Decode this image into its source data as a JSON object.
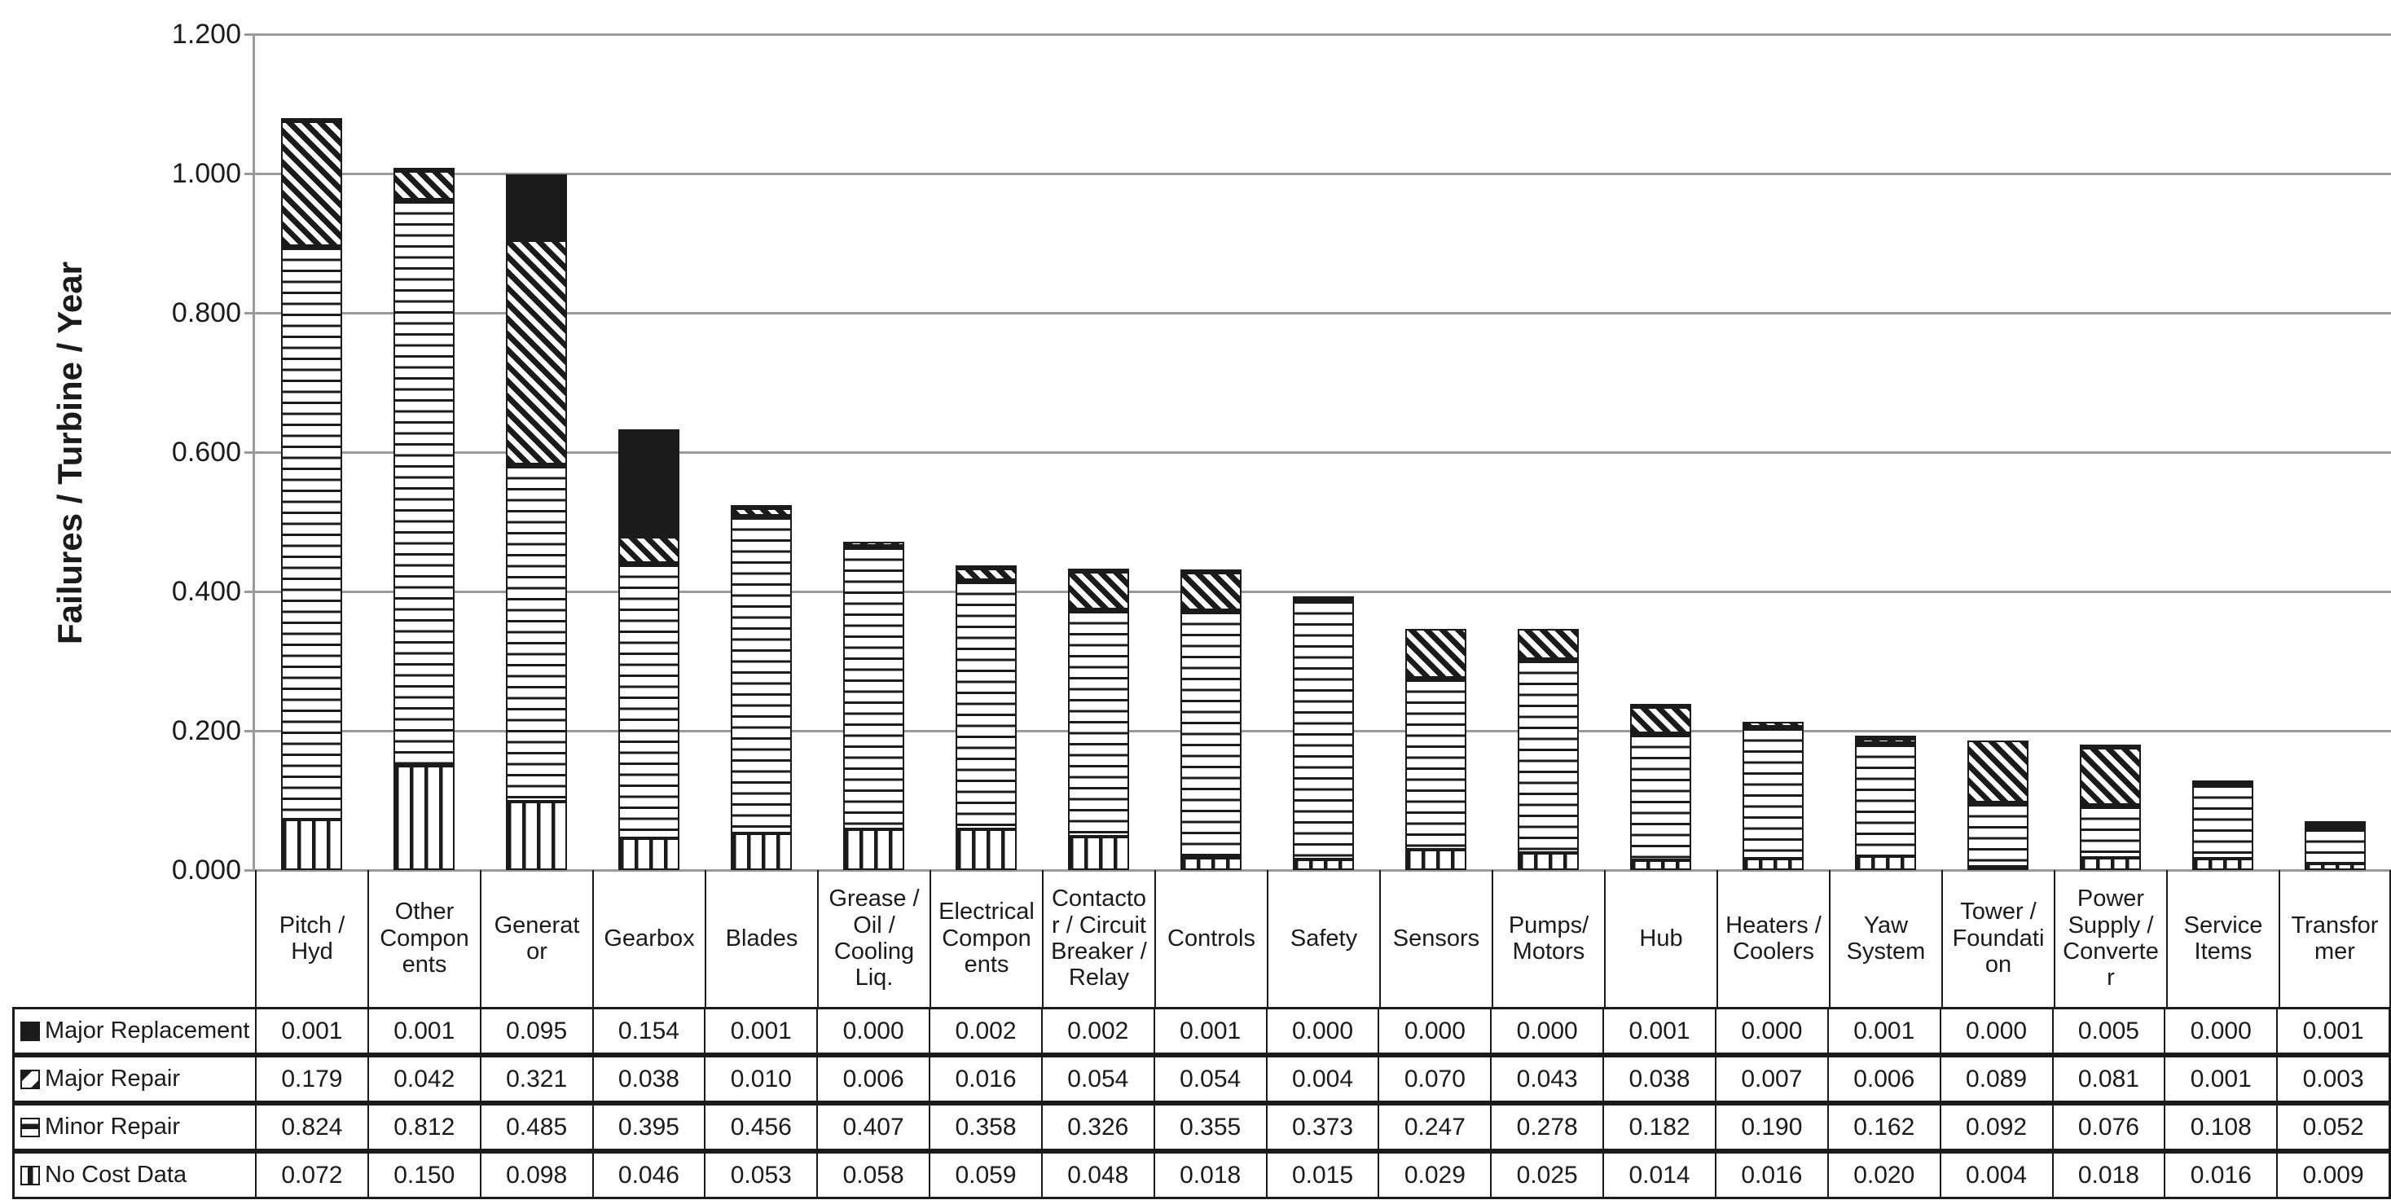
{
  "colors": {
    "ink": "#1b1b1b",
    "gridline": "#9a9a9a",
    "background": "#ffffff"
  },
  "chart_data": {
    "type": "bar",
    "stacked": true,
    "title": "",
    "xlabel": "",
    "ylabel": "Failures / Turbine / Year",
    "ylim": [
      0,
      1.2
    ],
    "ytick_step": 0.2,
    "ytick_labels": [
      "1.200",
      "1.000",
      "0.800",
      "0.600",
      "0.400",
      "0.200",
      "0.000"
    ],
    "grid": "horizontal",
    "legend_position": "table-left",
    "value_format": "0.000",
    "categories": [
      "Pitch / Hyd",
      "Other Components",
      "Generator",
      "Gearbox",
      "Blades",
      "Grease / Oil / Cooling Liq.",
      "Electrical Components",
      "Contactor / Circuit Breaker / Relay",
      "Controls",
      "Safety",
      "Sensors",
      "Pumps/ Motors",
      "Hub",
      "Heaters / Coolers",
      "Yaw System",
      "Tower / Foundation",
      "Power Supply / Converter",
      "Service Items",
      "Transformer"
    ],
    "categories_display": [
      "Pitch /\nHyd",
      "Other\nCompon\nents",
      "Generat\nor",
      "Gearbox",
      "Blades",
      "Grease /\nOil /\nCooling\nLiq.",
      "Electrical\nCompon\nents",
      "Contacto\nr / Circuit\nBreaker /\nRelay",
      "Controls",
      "Safety",
      "Sensors",
      "Pumps/\nMotors",
      "Hub",
      "Heaters /\nCoolers",
      "Yaw\nSystem",
      "Tower /\nFoundati\non",
      "Power\nSupply /\nConverte\nr",
      "Service\nItems",
      "Transfor\nmer"
    ],
    "series": [
      {
        "name": "Major Replacement",
        "pattern": "solid",
        "values": [
          0.001,
          0.001,
          0.095,
          0.154,
          0.001,
          0.0,
          0.002,
          0.002,
          0.001,
          0.0,
          0.0,
          0.0,
          0.001,
          0.0,
          0.001,
          0.0,
          0.005,
          0.0,
          0.001
        ]
      },
      {
        "name": "Major Repair",
        "pattern": "diagonal-stripes",
        "values": [
          0.179,
          0.042,
          0.321,
          0.038,
          0.01,
          0.006,
          0.016,
          0.054,
          0.054,
          0.004,
          0.07,
          0.043,
          0.038,
          0.007,
          0.006,
          0.089,
          0.081,
          0.001,
          0.003
        ]
      },
      {
        "name": "Minor Repair",
        "pattern": "horizontal-stripes",
        "values": [
          0.824,
          0.812,
          0.485,
          0.395,
          0.456,
          0.407,
          0.358,
          0.326,
          0.355,
          0.373,
          0.247,
          0.278,
          0.182,
          0.19,
          0.162,
          0.092,
          0.076,
          0.108,
          0.052
        ]
      },
      {
        "name": "No Cost Data",
        "pattern": "vertical-stripes",
        "values": [
          0.072,
          0.15,
          0.098,
          0.046,
          0.053,
          0.058,
          0.059,
          0.048,
          0.018,
          0.015,
          0.029,
          0.025,
          0.014,
          0.016,
          0.02,
          0.004,
          0.018,
          0.016,
          0.009
        ]
      }
    ]
  }
}
